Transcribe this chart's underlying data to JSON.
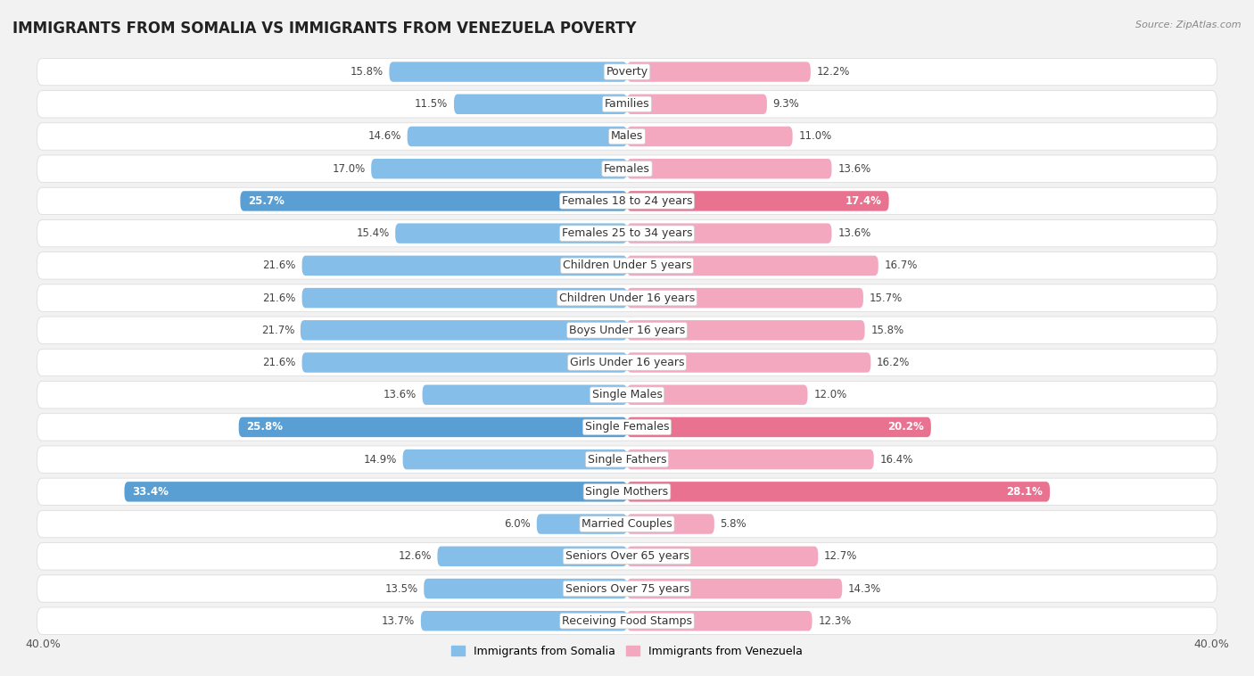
{
  "title": "IMMIGRANTS FROM SOMALIA VS IMMIGRANTS FROM VENEZUELA POVERTY",
  "source": "Source: ZipAtlas.com",
  "categories": [
    "Poverty",
    "Families",
    "Males",
    "Females",
    "Females 18 to 24 years",
    "Females 25 to 34 years",
    "Children Under 5 years",
    "Children Under 16 years",
    "Boys Under 16 years",
    "Girls Under 16 years",
    "Single Males",
    "Single Females",
    "Single Fathers",
    "Single Mothers",
    "Married Couples",
    "Seniors Over 65 years",
    "Seniors Over 75 years",
    "Receiving Food Stamps"
  ],
  "somalia_values": [
    15.8,
    11.5,
    14.6,
    17.0,
    25.7,
    15.4,
    21.6,
    21.6,
    21.7,
    21.6,
    13.6,
    25.8,
    14.9,
    33.4,
    6.0,
    12.6,
    13.5,
    13.7
  ],
  "venezuela_values": [
    12.2,
    9.3,
    11.0,
    13.6,
    17.4,
    13.6,
    16.7,
    15.7,
    15.8,
    16.2,
    12.0,
    20.2,
    16.4,
    28.1,
    5.8,
    12.7,
    14.3,
    12.3
  ],
  "somalia_color": "#85BEE8",
  "venezuela_color": "#F4A8C0",
  "somalia_highlight_color": "#5A9FD4",
  "venezuela_highlight_color": "#E8728F",
  "background_color": "#f2f2f2",
  "row_color": "#ffffff",
  "row_border_color": "#d8d8d8",
  "bar_height": 0.62,
  "xlim": 40.0,
  "highlight_categories": [
    "Females 18 to 24 years",
    "Single Females",
    "Single Mothers"
  ],
  "legend_somalia": "Immigrants from Somalia",
  "legend_venezuela": "Immigrants from Venezuela",
  "title_fontsize": 12,
  "label_fontsize": 9,
  "value_fontsize": 8.5,
  "axis_fontsize": 9
}
